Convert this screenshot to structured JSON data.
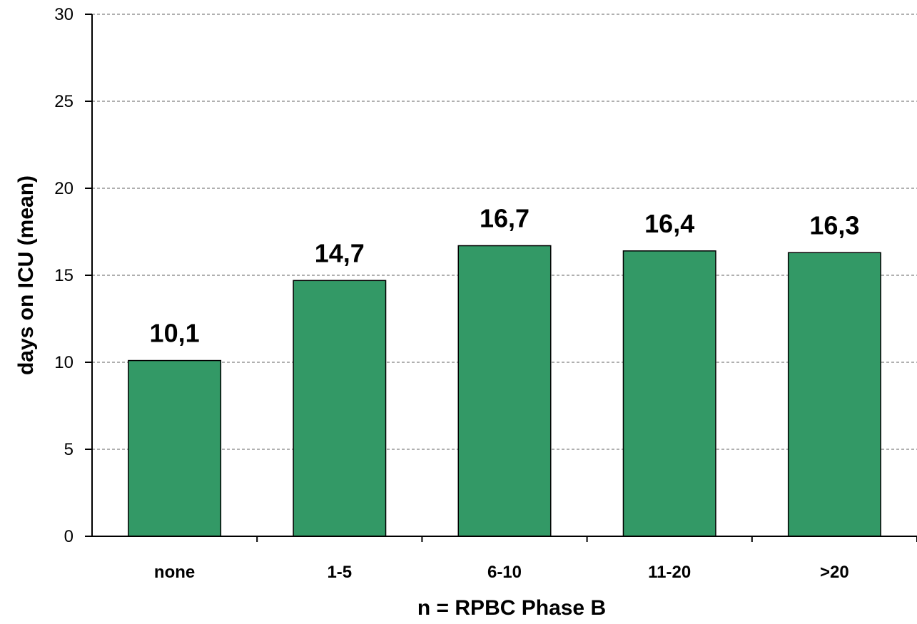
{
  "chart_data": {
    "type": "bar",
    "categories": [
      "none",
      "1-5",
      "6-10",
      "11-20",
      ">20"
    ],
    "values": [
      10.1,
      14.7,
      16.7,
      16.4,
      16.3
    ],
    "value_labels": [
      "10,1",
      "14,7",
      "16,7",
      "16,4",
      "16,3"
    ],
    "xlabel": "n = RPBC Phase B",
    "ylabel": "days on ICU (mean)",
    "ylim": [
      0,
      30
    ],
    "yticks": [
      0,
      5,
      10,
      15,
      20,
      25,
      30
    ],
    "grid": "horizontal dashed",
    "bar_color": "#339966"
  }
}
